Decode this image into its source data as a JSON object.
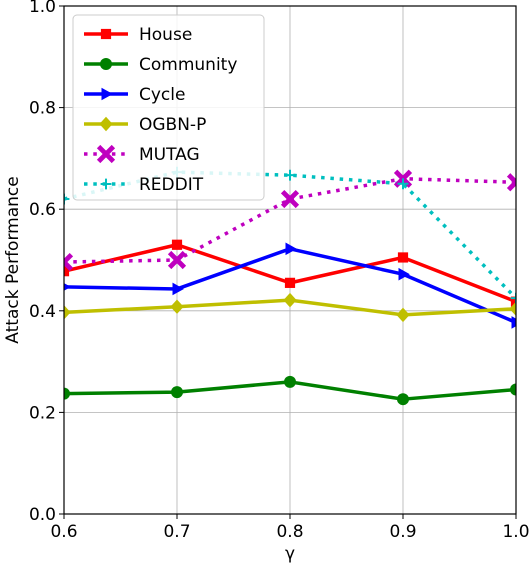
{
  "chart_data": {
    "type": "line",
    "xlabel": "γ",
    "ylabel": "Attack Performance",
    "xlim": [
      0.6,
      1.0
    ],
    "ylim": [
      0.0,
      1.0
    ],
    "x_ticks": [
      "0.6",
      "0.7",
      "0.8",
      "0.9",
      "1.0"
    ],
    "y_ticks": [
      "0.0",
      "0.2",
      "0.4",
      "0.6",
      "0.8",
      "1.0"
    ],
    "grid": true,
    "legend_position": "top-left",
    "x": [
      0.6,
      0.7,
      0.8,
      0.9,
      1.0
    ],
    "series": [
      {
        "name": "House",
        "values": [
          0.478,
          0.53,
          0.455,
          0.505,
          0.418
        ],
        "color": "#ff0000",
        "marker": "square",
        "linestyle": "solid"
      },
      {
        "name": "Community",
        "values": [
          0.237,
          0.24,
          0.26,
          0.226,
          0.245
        ],
        "color": "#008000",
        "marker": "circle",
        "linestyle": "solid"
      },
      {
        "name": "Cycle",
        "values": [
          0.447,
          0.443,
          0.522,
          0.472,
          0.377
        ],
        "color": "#0000ff",
        "marker": "triangle-right",
        "linestyle": "solid"
      },
      {
        "name": "OGBN-P",
        "values": [
          0.397,
          0.408,
          0.421,
          0.392,
          0.404
        ],
        "color": "#bfbf00",
        "marker": "diamond",
        "linestyle": "solid"
      },
      {
        "name": "MUTAG",
        "values": [
          0.496,
          0.5,
          0.62,
          0.66,
          0.653
        ],
        "color": "#bf00bf",
        "marker": "x-filled",
        "linestyle": "dotted"
      },
      {
        "name": "REDDIT",
        "values": [
          0.62,
          0.673,
          0.667,
          0.65,
          0.425
        ],
        "color": "#00bfbf",
        "marker": "plus",
        "linestyle": "dotted"
      }
    ]
  }
}
